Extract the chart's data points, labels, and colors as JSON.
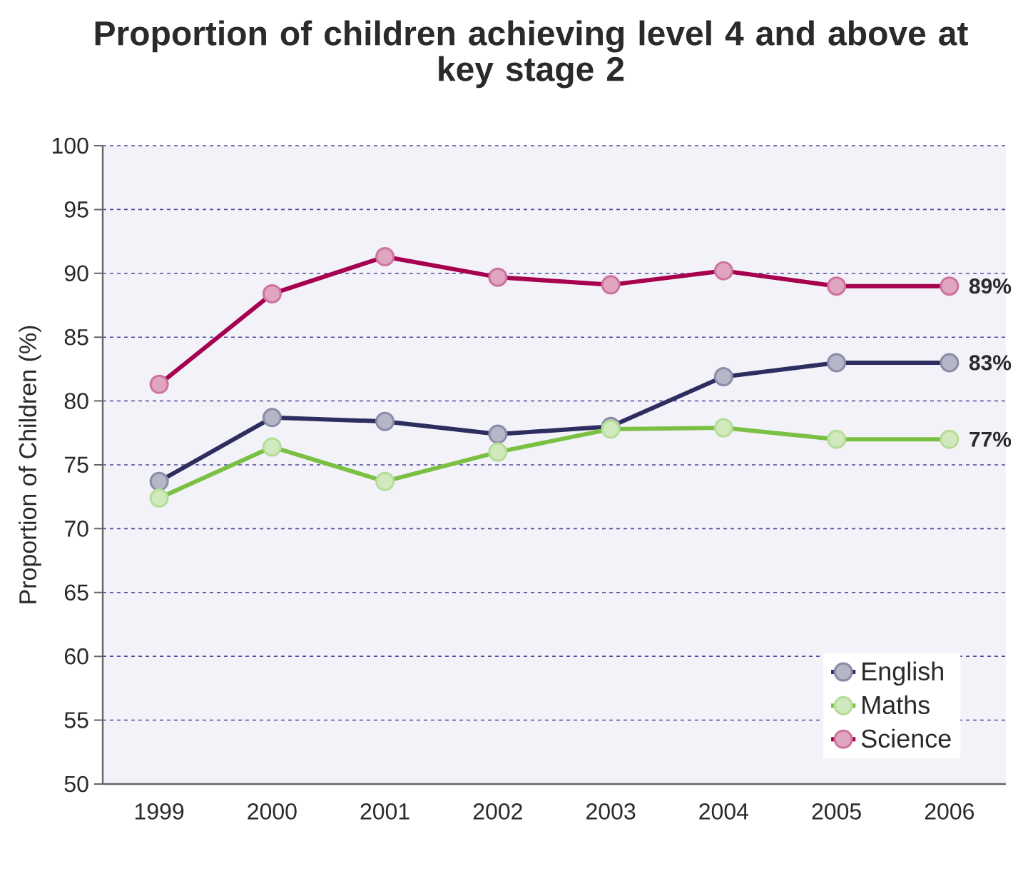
{
  "chart_data": {
    "type": "line",
    "title": "Proportion of children achieving level 4 and above at key stage 2",
    "ylabel": "Proportion of Children (%)",
    "categories": [
      "1999",
      "2000",
      "2001",
      "2002",
      "2003",
      "2004",
      "2005",
      "2006"
    ],
    "series": [
      {
        "name": "English",
        "color": "#2d2e5f",
        "values": [
          73.7,
          78.7,
          78.4,
          77.4,
          78.0,
          81.9,
          83,
          83
        ],
        "value_labels": [
          null,
          null,
          null,
          null,
          null,
          null,
          null,
          "83%"
        ]
      },
      {
        "name": "Maths",
        "color": "#7ac143",
        "values": [
          72.4,
          76.4,
          73.7,
          76.0,
          77.8,
          77.9,
          77,
          77
        ],
        "value_labels": [
          null,
          null,
          null,
          null,
          null,
          null,
          null,
          "77%"
        ]
      },
      {
        "name": "Science",
        "color": "#a6004f",
        "values": [
          81.3,
          88.4,
          91.3,
          89.7,
          89.1,
          90.2,
          89,
          89
        ],
        "value_labels": [
          null,
          null,
          null,
          null,
          null,
          null,
          null,
          "89%"
        ]
      }
    ],
    "ylim": [
      50,
      100
    ],
    "yticks": [
      50,
      55,
      60,
      65,
      70,
      75,
      80,
      85,
      90,
      95,
      100
    ],
    "grid": "y",
    "legend": "bottom right",
    "marker": "circle",
    "line_style": "solid"
  }
}
